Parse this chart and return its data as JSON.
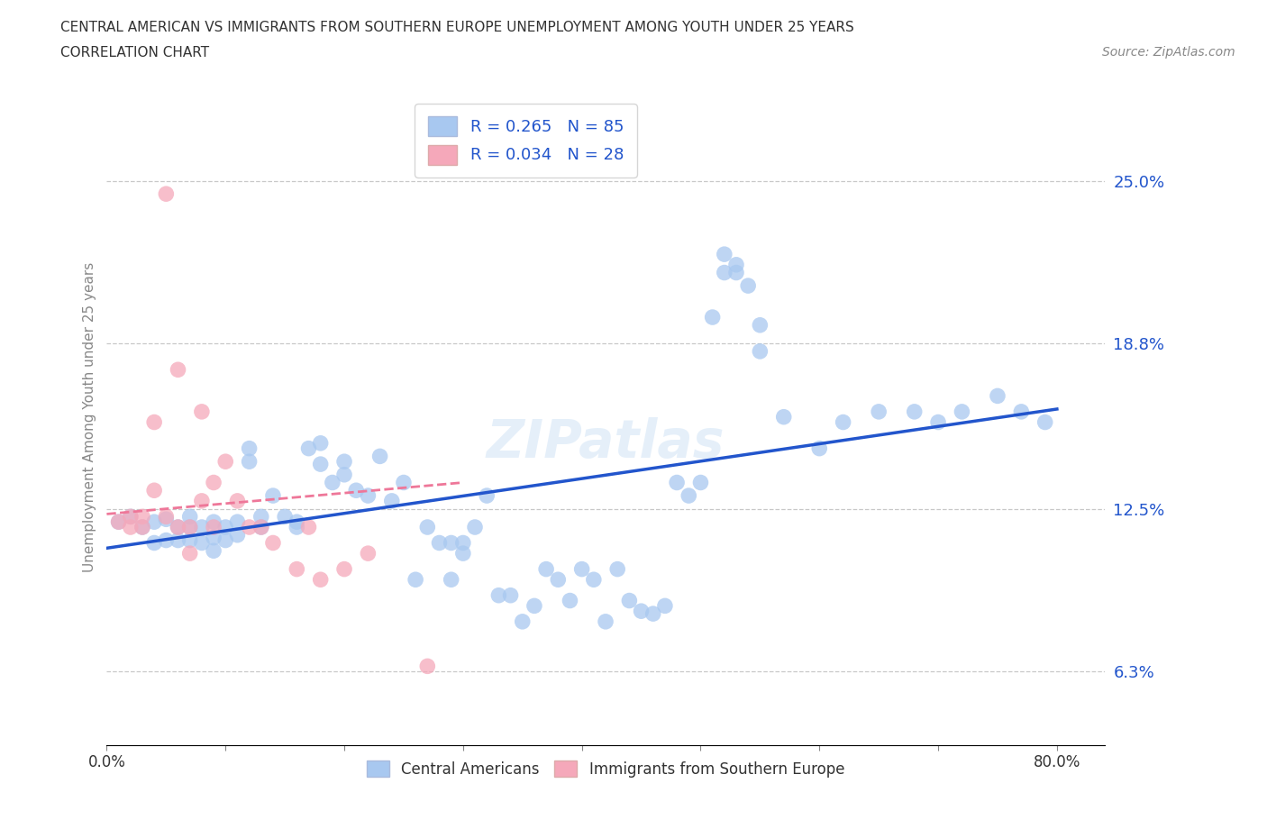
{
  "title_line1": "CENTRAL AMERICAN VS IMMIGRANTS FROM SOUTHERN EUROPE UNEMPLOYMENT AMONG YOUTH UNDER 25 YEARS",
  "title_line2": "CORRELATION CHART",
  "source": "Source: ZipAtlas.com",
  "ylabel": "Unemployment Among Youth under 25 years",
  "xlim": [
    0.0,
    0.84
  ],
  "ylim": [
    0.035,
    0.285
  ],
  "yticks": [
    0.063,
    0.125,
    0.188,
    0.25
  ],
  "ytick_labels": [
    "6.3%",
    "12.5%",
    "18.8%",
    "25.0%"
  ],
  "xticks": [
    0.0,
    0.1,
    0.2,
    0.3,
    0.4,
    0.5,
    0.6,
    0.7,
    0.8
  ],
  "xtick_labels": [
    "0.0%",
    "",
    "",
    "",
    "",
    "",
    "",
    "",
    "80.0%"
  ],
  "hlines": [
    0.063,
    0.125,
    0.188,
    0.25
  ],
  "blue_color": "#A8C8F0",
  "pink_color": "#F5A8BA",
  "trend_blue": "#2255CC",
  "trend_pink": "#EE7799",
  "legend_blue_label": "R = 0.265   N = 85",
  "legend_pink_label": "R = 0.034   N = 28",
  "watermark": "ZIPatlas",
  "blue_trend_x": [
    0.0,
    0.8
  ],
  "blue_trend_y": [
    0.11,
    0.163
  ],
  "pink_trend_x": [
    0.0,
    0.3
  ],
  "pink_trend_y": [
    0.123,
    0.135
  ],
  "blue_scatter_x": [
    0.01,
    0.02,
    0.03,
    0.04,
    0.04,
    0.05,
    0.05,
    0.06,
    0.06,
    0.07,
    0.07,
    0.07,
    0.08,
    0.08,
    0.09,
    0.09,
    0.09,
    0.1,
    0.1,
    0.11,
    0.11,
    0.12,
    0.12,
    0.13,
    0.13,
    0.14,
    0.15,
    0.16,
    0.16,
    0.17,
    0.18,
    0.18,
    0.19,
    0.2,
    0.2,
    0.21,
    0.22,
    0.23,
    0.24,
    0.25,
    0.26,
    0.27,
    0.28,
    0.29,
    0.3,
    0.31,
    0.32,
    0.33,
    0.34,
    0.35,
    0.36,
    0.37,
    0.38,
    0.39,
    0.4,
    0.41,
    0.42,
    0.43,
    0.44,
    0.45,
    0.47,
    0.48,
    0.49,
    0.5,
    0.51,
    0.52,
    0.53,
    0.55,
    0.57,
    0.6,
    0.62,
    0.65,
    0.68,
    0.7,
    0.72,
    0.75,
    0.77,
    0.79,
    0.52,
    0.53,
    0.54,
    0.55,
    0.46,
    0.29,
    0.3
  ],
  "blue_scatter_y": [
    0.12,
    0.122,
    0.118,
    0.112,
    0.12,
    0.113,
    0.121,
    0.113,
    0.118,
    0.113,
    0.118,
    0.122,
    0.112,
    0.118,
    0.109,
    0.114,
    0.12,
    0.113,
    0.118,
    0.115,
    0.12,
    0.143,
    0.148,
    0.118,
    0.122,
    0.13,
    0.122,
    0.12,
    0.118,
    0.148,
    0.142,
    0.15,
    0.135,
    0.138,
    0.143,
    0.132,
    0.13,
    0.145,
    0.128,
    0.135,
    0.098,
    0.118,
    0.112,
    0.098,
    0.112,
    0.118,
    0.13,
    0.092,
    0.092,
    0.082,
    0.088,
    0.102,
    0.098,
    0.09,
    0.102,
    0.098,
    0.082,
    0.102,
    0.09,
    0.086,
    0.088,
    0.135,
    0.13,
    0.135,
    0.198,
    0.215,
    0.218,
    0.185,
    0.16,
    0.148,
    0.158,
    0.162,
    0.162,
    0.158,
    0.162,
    0.168,
    0.162,
    0.158,
    0.222,
    0.215,
    0.21,
    0.195,
    0.085,
    0.112,
    0.108
  ],
  "pink_scatter_x": [
    0.01,
    0.02,
    0.02,
    0.03,
    0.03,
    0.04,
    0.04,
    0.05,
    0.05,
    0.06,
    0.06,
    0.07,
    0.07,
    0.08,
    0.08,
    0.09,
    0.09,
    0.1,
    0.11,
    0.12,
    0.13,
    0.14,
    0.16,
    0.17,
    0.18,
    0.2,
    0.22,
    0.27
  ],
  "pink_scatter_y": [
    0.12,
    0.118,
    0.122,
    0.118,
    0.122,
    0.132,
    0.158,
    0.245,
    0.122,
    0.118,
    0.178,
    0.108,
    0.118,
    0.162,
    0.128,
    0.135,
    0.118,
    0.143,
    0.128,
    0.118,
    0.118,
    0.112,
    0.102,
    0.118,
    0.098,
    0.102,
    0.108,
    0.065
  ]
}
